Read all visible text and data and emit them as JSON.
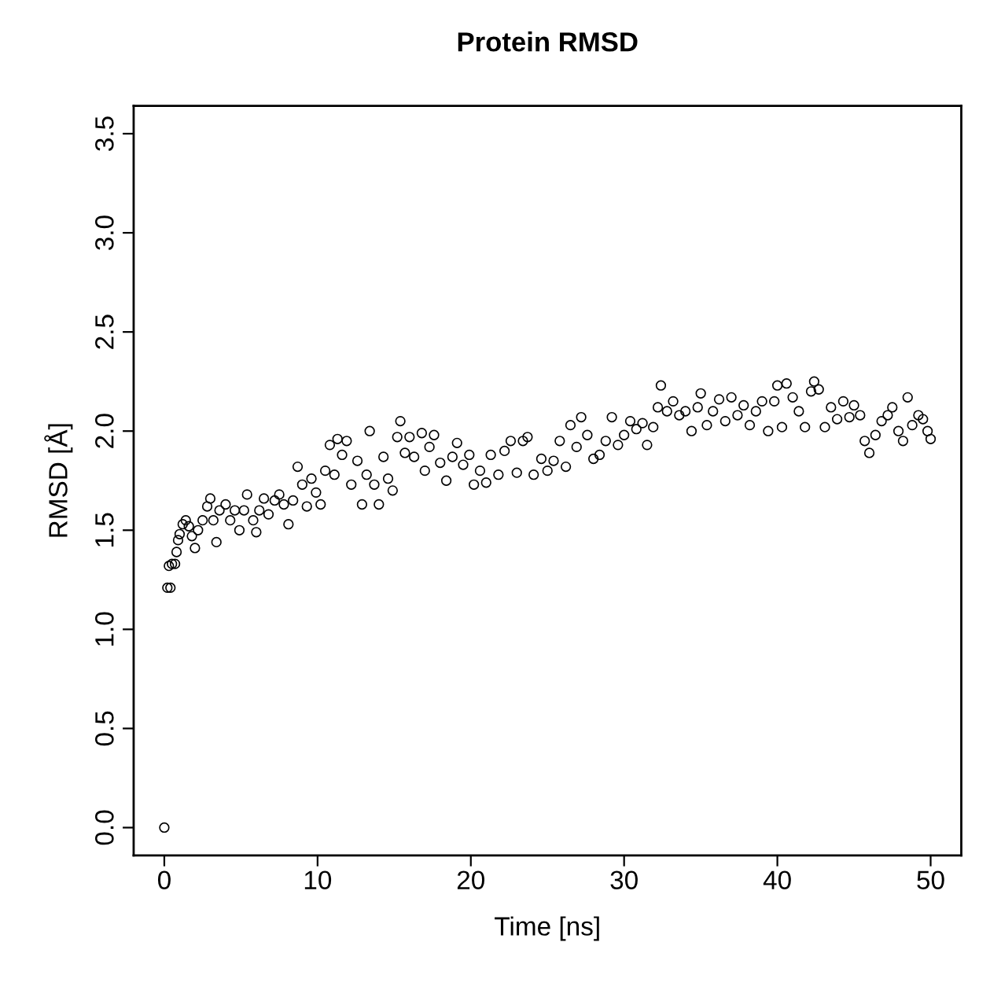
{
  "chart_data": {
    "type": "scatter",
    "title": "Protein RMSD",
    "xlabel": "Time [ns]",
    "ylabel": "RMSD [Å]",
    "xlim": [
      -2,
      52
    ],
    "ylim": [
      -0.14,
      3.64
    ],
    "xticks": [
      0,
      10,
      20,
      30,
      40,
      50
    ],
    "yticks": [
      {
        "value": 0,
        "label": "0.0"
      },
      {
        "value": 0.5,
        "label": "0.5"
      },
      {
        "value": 1,
        "label": "1.0"
      },
      {
        "value": 1.5,
        "label": "1.5"
      },
      {
        "value": 2,
        "label": "2.0"
      },
      {
        "value": 2.5,
        "label": "2.5"
      },
      {
        "value": 3,
        "label": "3.0"
      },
      {
        "value": 3.5,
        "label": "3.5"
      }
    ],
    "marker": "circle",
    "grid": false,
    "legend": false,
    "series": [
      {
        "color": "#000000",
        "x": [
          0.0,
          0.2,
          0.3,
          0.4,
          0.5,
          0.7,
          0.8,
          0.9,
          1.0,
          1.2,
          1.4,
          1.6,
          1.8,
          2.0,
          2.2,
          2.5,
          2.8,
          3.0,
          3.2,
          3.4,
          3.6,
          4.0,
          4.3,
          4.6,
          4.9,
          5.2,
          5.4,
          5.8,
          6.0,
          6.2,
          6.5,
          6.8,
          7.2,
          7.5,
          7.8,
          8.1,
          8.4,
          8.7,
          9.0,
          9.3,
          9.6,
          9.9,
          10.2,
          10.5,
          10.8,
          11.1,
          11.3,
          11.6,
          11.9,
          12.2,
          12.6,
          12.9,
          13.2,
          13.4,
          13.7,
          14.0,
          14.3,
          14.6,
          14.9,
          15.2,
          15.4,
          15.7,
          16.0,
          16.3,
          16.8,
          17.0,
          17.3,
          17.6,
          18.0,
          18.4,
          18.8,
          19.1,
          19.5,
          19.9,
          20.2,
          20.6,
          21.0,
          21.3,
          21.8,
          22.2,
          22.6,
          23.0,
          23.4,
          23.7,
          24.1,
          24.6,
          25.0,
          25.4,
          25.8,
          26.2,
          26.5,
          26.9,
          27.2,
          27.6,
          28.0,
          28.4,
          28.8,
          29.2,
          29.6,
          30.0,
          30.4,
          30.8,
          31.2,
          31.5,
          31.9,
          32.2,
          32.4,
          32.8,
          33.2,
          33.6,
          34.0,
          34.4,
          34.8,
          35.0,
          35.4,
          35.8,
          36.2,
          36.6,
          37.0,
          37.4,
          37.8,
          38.2,
          38.6,
          39.0,
          39.4,
          39.8,
          40.0,
          40.3,
          40.6,
          41.0,
          41.4,
          41.8,
          42.2,
          42.4,
          42.7,
          43.1,
          43.5,
          43.9,
          44.3,
          44.7,
          45.0,
          45.4,
          45.7,
          46.0,
          46.4,
          46.8,
          47.2,
          47.5,
          47.9,
          48.2,
          48.5,
          48.8,
          49.2,
          49.5,
          49.8,
          50.0
        ],
        "values": [
          0.0,
          1.21,
          1.32,
          1.21,
          1.33,
          1.33,
          1.39,
          1.45,
          1.48,
          1.53,
          1.55,
          1.52,
          1.47,
          1.41,
          1.5,
          1.55,
          1.62,
          1.66,
          1.55,
          1.44,
          1.6,
          1.63,
          1.55,
          1.6,
          1.5,
          1.6,
          1.68,
          1.55,
          1.49,
          1.6,
          1.66,
          1.58,
          1.65,
          1.68,
          1.63,
          1.53,
          1.65,
          1.82,
          1.73,
          1.62,
          1.76,
          1.69,
          1.63,
          1.8,
          1.93,
          1.78,
          1.96,
          1.88,
          1.95,
          1.73,
          1.85,
          1.63,
          1.78,
          2.0,
          1.73,
          1.63,
          1.87,
          1.76,
          1.7,
          1.97,
          2.05,
          1.89,
          1.97,
          1.87,
          1.99,
          1.8,
          1.92,
          1.98,
          1.84,
          1.75,
          1.87,
          1.94,
          1.83,
          1.88,
          1.73,
          1.8,
          1.74,
          1.88,
          1.78,
          1.9,
          1.95,
          1.79,
          1.95,
          1.97,
          1.78,
          1.86,
          1.8,
          1.85,
          1.95,
          1.82,
          2.03,
          1.92,
          2.07,
          1.98,
          1.86,
          1.88,
          1.95,
          2.07,
          1.93,
          1.98,
          2.05,
          2.01,
          2.04,
          1.93,
          2.02,
          2.12,
          2.23,
          2.1,
          2.15,
          2.08,
          2.1,
          2.0,
          2.12,
          2.19,
          2.03,
          2.1,
          2.16,
          2.05,
          2.17,
          2.08,
          2.13,
          2.03,
          2.1,
          2.15,
          2.0,
          2.15,
          2.23,
          2.02,
          2.24,
          2.17,
          2.1,
          2.02,
          2.2,
          2.25,
          2.21,
          2.02,
          2.12,
          2.06,
          2.15,
          2.07,
          2.13,
          2.08,
          1.95,
          1.89,
          1.98,
          2.05,
          2.08,
          2.12,
          2.0,
          1.95,
          2.17,
          2.03,
          2.08,
          2.06,
          2.0,
          1.96
        ]
      }
    ]
  }
}
